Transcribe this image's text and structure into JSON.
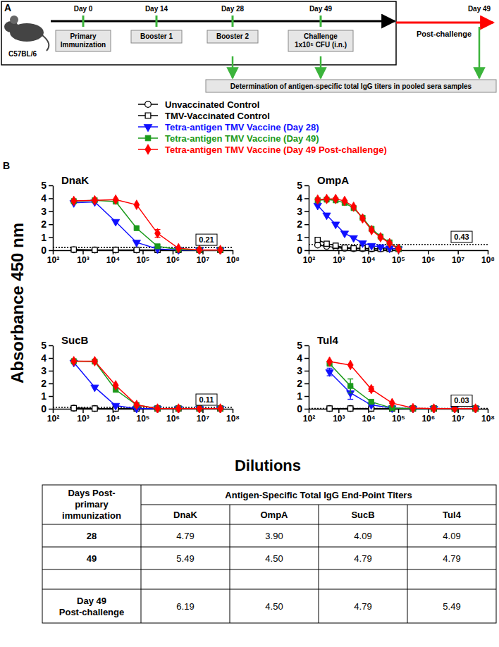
{
  "panel_a": {
    "label": "A",
    "strain": "C57BL/6",
    "days": [
      {
        "label": "Day 0",
        "box": [
          "Primary",
          "Immunization"
        ]
      },
      {
        "label": "Day 14",
        "box": [
          "Booster 1"
        ]
      },
      {
        "label": "Day 28",
        "box": [
          "Booster 2"
        ]
      },
      {
        "label": "Day 49",
        "box": [
          "Challenge",
          "1x10⁵ CFU (i.n.)"
        ]
      }
    ],
    "post_challenge": "Post-challenge",
    "post_day": "Day 49",
    "assay": "Determination of antigen-specific total IgG titers in pooled sera samples"
  },
  "figure": {
    "panel_label": "B",
    "y_label": "Absorbance 450 nm",
    "x_label": "Dilutions"
  },
  "chart_data": [
    {
      "type": "line",
      "title": "DnaK",
      "log": "x",
      "x": [
        500,
        2500,
        12500,
        62500,
        312500,
        1562500,
        7812500,
        39062500
      ],
      "xlim": [
        100,
        100000000
      ],
      "xticks": [
        {
          "value": 100,
          "label": "10²"
        },
        {
          "value": 1000,
          "label": "10³"
        },
        {
          "value": 10000,
          "label": "10⁴"
        },
        {
          "value": 100000,
          "label": "10⁵"
        },
        {
          "value": 1000000,
          "label": "10⁶"
        },
        {
          "value": 10000000,
          "label": "10⁷"
        },
        {
          "value": 100000000,
          "label": "10⁸"
        }
      ],
      "ylim": [
        0,
        5
      ],
      "yticks": [
        0,
        1,
        2,
        3,
        4,
        5
      ],
      "cutoff": 0.21,
      "series": [
        {
          "name": "Unvaccinated Control",
          "color": "#000000",
          "marker": "circle-open",
          "line_style": "solid",
          "values": [
            0.03,
            0.02,
            0.02,
            0.02,
            0.02,
            0.02,
            0.02,
            0.02
          ]
        },
        {
          "name": "TMV-Vaccinated Control",
          "color": "#000000",
          "marker": "square-open",
          "line_style": "solid",
          "values": [
            0.05,
            0.02,
            0.02,
            0.02,
            0.02,
            0.02,
            0.02,
            0.02
          ]
        },
        {
          "name": "Tetra-antigen TMV Vaccine (Day 28)",
          "color": "#1010ff",
          "marker": "triangle-down",
          "line_style": "solid",
          "values": [
            3.65,
            3.72,
            2.2,
            0.6,
            0.1,
            0.02,
            0.02,
            0.02
          ]
        },
        {
          "name": "Tetra-antigen TMV Vaccine (Day 49)",
          "color": "#1a9a1a",
          "marker": "square",
          "line_style": "solid",
          "values": [
            3.78,
            3.85,
            3.75,
            1.7,
            0.3,
            0.05,
            0.02,
            0.02
          ]
        },
        {
          "name": "Tetra-antigen TMV Vaccine (Day 49 Post-challenge)",
          "color": "#ff0000",
          "marker": "diamond",
          "line_style": "solid",
          "values": [
            3.8,
            3.85,
            3.9,
            3.5,
            1.3,
            0.15,
            0.02,
            0.02
          ],
          "errors": [
            null,
            null,
            null,
            null,
            0.3,
            null,
            null,
            null
          ]
        }
      ]
    },
    {
      "type": "line",
      "title": "OmpA",
      "log": "x",
      "x": [
        200,
        400,
        800,
        1600,
        3200,
        6400,
        12800,
        25600,
        51200,
        102400
      ],
      "xlim": [
        100,
        100000000
      ],
      "xticks": [
        {
          "value": 100,
          "label": "10²"
        },
        {
          "value": 1000,
          "label": "10³"
        },
        {
          "value": 10000,
          "label": "10⁴"
        },
        {
          "value": 100000,
          "label": "10⁵"
        },
        {
          "value": 1000000,
          "label": "10⁶"
        },
        {
          "value": 10000000,
          "label": "10⁷"
        },
        {
          "value": 100000000,
          "label": "10⁸"
        }
      ],
      "ylim": [
        0,
        5
      ],
      "yticks": [
        0,
        1,
        2,
        3,
        4,
        5
      ],
      "cutoff": 0.43,
      "series": [
        {
          "name": "Unvaccinated Control",
          "color": "#000000",
          "marker": "circle-open",
          "line_style": "solid",
          "values": [
            0.4,
            0.3,
            0.2,
            0.15,
            0.12,
            0.12,
            0.1,
            0.1,
            0.1,
            0.1
          ]
        },
        {
          "name": "TMV-Vaccinated Control",
          "color": "#000000",
          "marker": "square-open",
          "line_style": "solid",
          "values": [
            0.8,
            0.5,
            0.35,
            0.2,
            0.15,
            0.15,
            0.12,
            0.1,
            0.1,
            0.1
          ]
        },
        {
          "name": "Tetra-antigen TMV Vaccine (Day 28)",
          "color": "#1010ff",
          "marker": "triangle-down",
          "line_style": "solid",
          "values": [
            3.45,
            2.7,
            2.0,
            1.3,
            0.95,
            0.55,
            0.35,
            0.25,
            0.15,
            0.1
          ]
        },
        {
          "name": "Tetra-antigen TMV Vaccine (Day 49)",
          "color": "#1a9a1a",
          "marker": "square",
          "line_style": "solid",
          "values": [
            3.85,
            3.9,
            3.85,
            3.65,
            3.25,
            2.5,
            1.65,
            1.05,
            0.6,
            0.1
          ]
        },
        {
          "name": "Tetra-antigen TMV Vaccine (Day 49 Post-challenge)",
          "color": "#ff0000",
          "marker": "diamond",
          "line_style": "solid",
          "values": [
            3.9,
            3.95,
            3.95,
            3.8,
            3.35,
            2.45,
            1.55,
            1.0,
            0.55,
            0.1
          ]
        }
      ]
    },
    {
      "type": "line",
      "title": "SucB",
      "log": "x",
      "x": [
        500,
        2500,
        12500,
        62500,
        312500,
        1562500,
        7812500,
        39062500
      ],
      "xlim": [
        100,
        100000000
      ],
      "xticks": [
        {
          "value": 100,
          "label": "10²"
        },
        {
          "value": 1000,
          "label": "10³"
        },
        {
          "value": 10000,
          "label": "10⁴"
        },
        {
          "value": 100000,
          "label": "10⁵"
        },
        {
          "value": 1000000,
          "label": "10⁶"
        },
        {
          "value": 10000000,
          "label": "10⁷"
        },
        {
          "value": 100000000,
          "label": "10⁸"
        }
      ],
      "ylim": [
        0,
        5
      ],
      "yticks": [
        0,
        1,
        2,
        3,
        4,
        5
      ],
      "cutoff": 0.11,
      "series": [
        {
          "name": "Unvaccinated Control",
          "color": "#000000",
          "marker": "circle-open",
          "line_style": "solid",
          "values": [
            0.05,
            0.02,
            0.02,
            0.02,
            0.02,
            0.02,
            0.02,
            0.02
          ]
        },
        {
          "name": "TMV-Vaccinated Control",
          "color": "#000000",
          "marker": "square-open",
          "line_style": "solid",
          "values": [
            0.05,
            0.02,
            0.02,
            0.02,
            0.02,
            0.02,
            0.02,
            0.02
          ]
        },
        {
          "name": "Tetra-antigen TMV Vaccine (Day 28)",
          "color": "#1010ff",
          "marker": "triangle-down",
          "line_style": "solid",
          "values": [
            3.65,
            1.7,
            0.25,
            0.02,
            0.02,
            0.02,
            0.02,
            0.02
          ]
        },
        {
          "name": "Tetra-antigen TMV Vaccine (Day 49)",
          "color": "#1a9a1a",
          "marker": "square",
          "line_style": "solid",
          "values": [
            3.75,
            3.72,
            1.5,
            0.3,
            0.02,
            0.02,
            0.02,
            0.02
          ]
        },
        {
          "name": "Tetra-antigen TMV Vaccine (Day 49 Post-challenge)",
          "color": "#ff0000",
          "marker": "diamond",
          "line_style": "solid",
          "values": [
            3.75,
            3.75,
            1.85,
            0.3,
            0.02,
            0.02,
            0.02,
            0.02
          ]
        }
      ]
    },
    {
      "type": "line",
      "title": "Tul4",
      "log": "x",
      "x": [
        500,
        2500,
        12500,
        62500,
        312500,
        1562500,
        7812500,
        39062500
      ],
      "xlim": [
        100,
        100000000
      ],
      "xticks": [
        {
          "value": 100,
          "label": "10²"
        },
        {
          "value": 1000,
          "label": "10³"
        },
        {
          "value": 10000,
          "label": "10⁴"
        },
        {
          "value": 100000,
          "label": "10⁵"
        },
        {
          "value": 1000000,
          "label": "10⁶"
        },
        {
          "value": 10000000,
          "label": "10⁷"
        },
        {
          "value": 100000000,
          "label": "10⁸"
        }
      ],
      "ylim": [
        0,
        5
      ],
      "yticks": [
        0,
        1,
        2,
        3,
        4,
        5
      ],
      "cutoff": 0.03,
      "series": [
        {
          "name": "Unvaccinated Control",
          "color": "#000000",
          "marker": "circle-open",
          "line_style": "solid",
          "values": [
            0.02,
            0.02,
            0.02,
            0.02,
            0.02,
            0.02,
            0.02,
            0.02
          ]
        },
        {
          "name": "TMV-Vaccinated Control",
          "color": "#000000",
          "marker": "square-open",
          "line_style": "solid",
          "values": [
            0.02,
            0.02,
            0.02,
            0.02,
            0.02,
            0.02,
            0.02,
            0.02
          ]
        },
        {
          "name": "Tetra-antigen TMV Vaccine (Day 28)",
          "color": "#1010ff",
          "marker": "triangle-down",
          "line_style": "solid",
          "values": [
            2.9,
            1.25,
            0.3,
            0.05,
            0.02,
            0.02,
            0.02,
            0.02
          ],
          "errors": [
            0.3,
            0.5,
            null,
            null,
            null,
            null,
            null,
            null
          ]
        },
        {
          "name": "Tetra-antigen TMV Vaccine (Day 49)",
          "color": "#1a9a1a",
          "marker": "square",
          "line_style": "solid",
          "values": [
            3.55,
            1.8,
            0.55,
            0.05,
            0.02,
            0.02,
            0.02,
            0.02
          ],
          "errors": [
            null,
            0.55,
            0.15,
            null,
            null,
            null,
            null,
            null
          ]
        },
        {
          "name": "Tetra-antigen TMV Vaccine (Day 49 Post-challenge)",
          "color": "#ff0000",
          "marker": "diamond",
          "line_style": "solid",
          "values": [
            3.72,
            3.45,
            1.55,
            0.45,
            0.05,
            0.02,
            0.02,
            0.02
          ],
          "errors": [
            null,
            null,
            0.18,
            null,
            null,
            null,
            null,
            null
          ]
        }
      ]
    }
  ],
  "table": {
    "corner": [
      "Days Post-",
      "primary",
      "immunization"
    ],
    "group_header": "Antigen-Specific Total IgG End-Point Titers",
    "columns": [
      "DnaK",
      "OmpA",
      "SucB",
      "Tul4"
    ],
    "rows": [
      {
        "label": [
          "28"
        ],
        "cells": [
          "4.79",
          "3.90",
          "4.09",
          "4.09"
        ]
      },
      {
        "label": [
          "49"
        ],
        "cells": [
          "5.49",
          "4.50",
          "4.79",
          "4.79"
        ]
      },
      {
        "label": [
          "Day 49",
          "Post-challenge"
        ],
        "cells": [
          "6.19",
          "4.50",
          "4.79",
          "5.49"
        ]
      }
    ]
  }
}
